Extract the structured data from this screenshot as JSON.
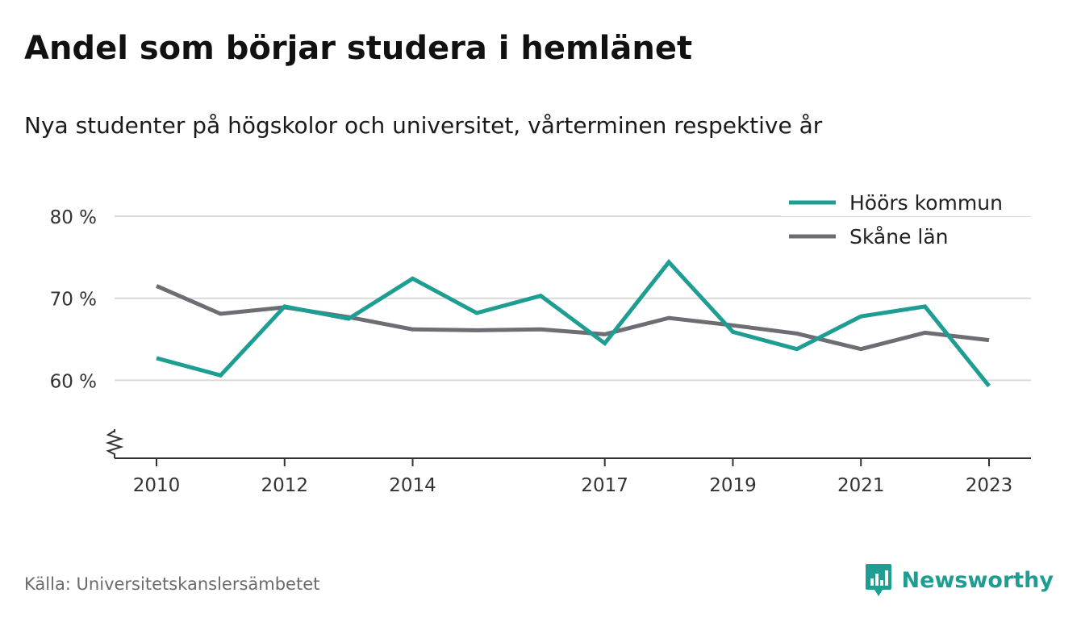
{
  "header": {
    "title": "Andel som börjar studera i hemlänet",
    "subtitle": "Nya studenter på högskolor och universitet, vårterminen respektive år"
  },
  "footer": {
    "source": "Källa: Universitetskanslersämbetet",
    "brand": "Newsworthy",
    "brand_icon": "bar-chart-icon"
  },
  "colors": {
    "accent": "#1e9d92",
    "secondary": "#6e6d73",
    "grid": "#d9d9d9",
    "axis": "#333333"
  },
  "chart_data": {
    "type": "line",
    "x": [
      2010,
      2011,
      2012,
      2013,
      2014,
      2015,
      2016,
      2017,
      2018,
      2019,
      2020,
      2021,
      2022,
      2023
    ],
    "x_tick_labels": [
      "2010",
      "2012",
      "2014",
      "2017",
      "2019",
      "2021",
      "2023"
    ],
    "y_ticks": [
      60,
      70,
      80
    ],
    "y_tick_labels": [
      "60 %",
      "70 %",
      "80 %"
    ],
    "ylim": [
      50.5,
      80
    ],
    "axis_break": true,
    "grid": true,
    "legend_position": "top-right",
    "series": [
      {
        "name": "Höörs kommun",
        "color": "#1e9d92",
        "values": [
          62.7,
          60.6,
          69.0,
          67.5,
          72.4,
          68.2,
          70.3,
          64.5,
          74.4,
          65.9,
          63.8,
          67.8,
          69.0,
          59.3
        ]
      },
      {
        "name": "Skåne län",
        "color": "#6e6d73",
        "values": [
          71.5,
          68.1,
          68.9,
          67.7,
          66.2,
          66.1,
          66.2,
          65.6,
          67.6,
          66.7,
          65.7,
          63.8,
          65.8,
          64.9
        ]
      }
    ]
  }
}
